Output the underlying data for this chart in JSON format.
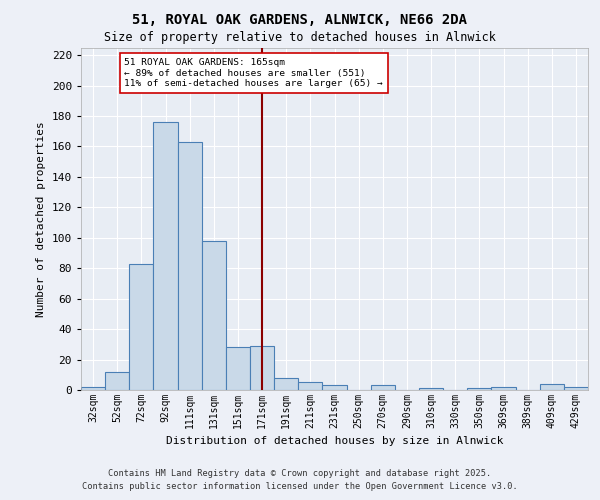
{
  "title_line1": "51, ROYAL OAK GARDENS, ALNWICK, NE66 2DA",
  "title_line2": "Size of property relative to detached houses in Alnwick",
  "xlabel": "Distribution of detached houses by size in Alnwick",
  "ylabel": "Number of detached properties",
  "bar_labels": [
    "32sqm",
    "52sqm",
    "72sqm",
    "92sqm",
    "111sqm",
    "131sqm",
    "151sqm",
    "171sqm",
    "191sqm",
    "211sqm",
    "231sqm",
    "250sqm",
    "270sqm",
    "290sqm",
    "310sqm",
    "330sqm",
    "350sqm",
    "369sqm",
    "389sqm",
    "409sqm",
    "429sqm"
  ],
  "bar_values": [
    2,
    12,
    83,
    176,
    163,
    98,
    28,
    29,
    8,
    5,
    3,
    0,
    3,
    0,
    1,
    0,
    1,
    2,
    0,
    4,
    2
  ],
  "bar_color": "#c9d9e8",
  "bar_edge_color": "#4a7fb5",
  "background_color": "#e8edf4",
  "fig_background_color": "#edf0f7",
  "grid_color": "#ffffff",
  "vline_x": 7,
  "vline_color": "#8b0000",
  "annotation_text": "51 ROYAL OAK GARDENS: 165sqm\n← 89% of detached houses are smaller (551)\n11% of semi-detached houses are larger (65) →",
  "annotation_box_color": "#ffffff",
  "annotation_box_edge_color": "#cc0000",
  "ylim": [
    0,
    225
  ],
  "yticks": [
    0,
    20,
    40,
    60,
    80,
    100,
    120,
    140,
    160,
    180,
    200,
    220
  ],
  "footer_text": "Contains HM Land Registry data © Crown copyright and database right 2025.\nContains public sector information licensed under the Open Government Licence v3.0."
}
